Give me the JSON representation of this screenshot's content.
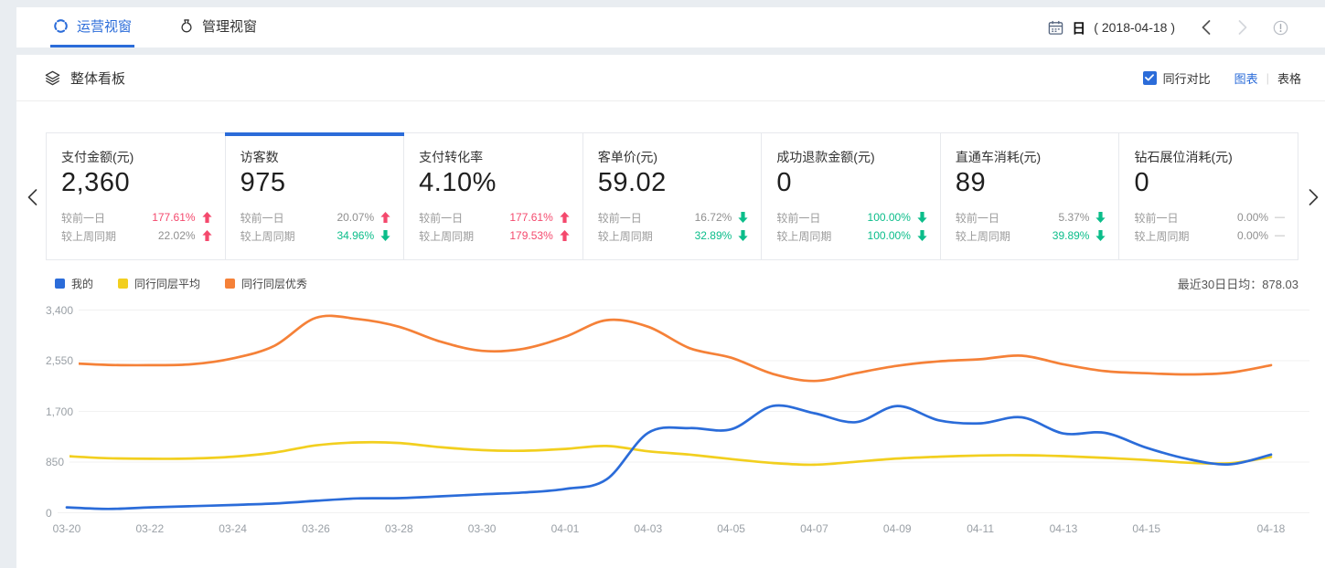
{
  "colors": {
    "accent": "#2b6cd9",
    "up_red": "#f4496d",
    "down_green": "#0bbd8a",
    "gray_text": "#9b9b9b",
    "line_blue": "#2b6cd9",
    "line_yellow": "#f2cf1f",
    "line_orange": "#f58138"
  },
  "header": {
    "tabs": [
      {
        "label": "运营视窗",
        "active": true
      },
      {
        "label": "管理视窗",
        "active": false
      }
    ],
    "date": {
      "unit": "日",
      "range": "( 2018-04-18 )"
    }
  },
  "board": {
    "title": "整体看板",
    "peer_compare": "同行对比",
    "chart_label": "图表",
    "table_label": "表格"
  },
  "cards": [
    {
      "title": "支付金额(元)",
      "value": "2,360",
      "selected": false,
      "rows": [
        {
          "label": "较前一日",
          "value": "177.61%",
          "value_color": "red",
          "arrow": "up"
        },
        {
          "label": "较上周同期",
          "value": "22.02%",
          "value_color": "gray",
          "arrow": "up"
        }
      ]
    },
    {
      "title": "访客数",
      "value": "975",
      "selected": true,
      "rows": [
        {
          "label": "较前一日",
          "value": "20.07%",
          "value_color": "gray",
          "arrow": "up"
        },
        {
          "label": "较上周同期",
          "value": "34.96%",
          "value_color": "green",
          "arrow": "down"
        }
      ]
    },
    {
      "title": "支付转化率",
      "value": "4.10%",
      "selected": false,
      "rows": [
        {
          "label": "较前一日",
          "value": "177.61%",
          "value_color": "red",
          "arrow": "up"
        },
        {
          "label": "较上周同期",
          "value": "179.53%",
          "value_color": "red",
          "arrow": "up"
        }
      ]
    },
    {
      "title": "客单价(元)",
      "value": "59.02",
      "selected": false,
      "rows": [
        {
          "label": "较前一日",
          "value": "16.72%",
          "value_color": "gray",
          "arrow": "down"
        },
        {
          "label": "较上周同期",
          "value": "32.89%",
          "value_color": "green",
          "arrow": "down"
        }
      ]
    },
    {
      "title": "成功退款金额(元)",
      "value": "0",
      "selected": false,
      "rows": [
        {
          "label": "较前一日",
          "value": "100.00%",
          "value_color": "green",
          "arrow": "down"
        },
        {
          "label": "较上周同期",
          "value": "100.00%",
          "value_color": "green",
          "arrow": "down"
        }
      ]
    },
    {
      "title": "直通车消耗(元)",
      "value": "89",
      "selected": false,
      "rows": [
        {
          "label": "较前一日",
          "value": "5.37%",
          "value_color": "gray",
          "arrow": "down"
        },
        {
          "label": "较上周同期",
          "value": "39.89%",
          "value_color": "green",
          "arrow": "down"
        }
      ]
    },
    {
      "title": "钻石展位消耗(元)",
      "value": "0",
      "selected": false,
      "rows": [
        {
          "label": "较前一日",
          "value": "0.00%",
          "value_color": "gray",
          "arrow": "dash"
        },
        {
          "label": "较上周同期",
          "value": "0.00%",
          "value_color": "gray",
          "arrow": "dash"
        }
      ]
    }
  ],
  "chart": {
    "avg_label": "最近30日日均：",
    "avg_value": "878.03",
    "chart_data": {
      "type": "line",
      "title": "",
      "xlabel": "",
      "ylabel": "",
      "ylim": [
        0,
        3400
      ],
      "grid": true,
      "legend_position": "top-left",
      "dates": [
        "03-20",
        "03-21",
        "03-22",
        "03-23",
        "03-24",
        "03-25",
        "03-26",
        "03-27",
        "03-28",
        "03-29",
        "03-30",
        "03-31",
        "04-01",
        "04-02",
        "04-03",
        "04-04",
        "04-05",
        "04-06",
        "04-07",
        "04-08",
        "04-09",
        "04-10",
        "04-11",
        "04-12",
        "04-13",
        "04-14",
        "04-15",
        "04-16",
        "04-17",
        "04-18"
      ],
      "x_tick_labels": [
        "03-20",
        "03-22",
        "03-24",
        "03-26",
        "03-28",
        "03-30",
        "04-01",
        "04-03",
        "04-05",
        "04-07",
        "04-09",
        "04-11",
        "04-13",
        "04-15",
        "04-18"
      ],
      "y_ticks": [
        {
          "value": 0,
          "label": "0"
        },
        {
          "value": 850,
          "label": "850"
        },
        {
          "value": 1700,
          "label": "1,700"
        },
        {
          "value": 2550,
          "label": "2,550"
        },
        {
          "value": 3400,
          "label": "3,400"
        }
      ],
      "series": [
        {
          "name": "我的",
          "color_key": "line_blue",
          "values": [
            90,
            65,
            90,
            110,
            130,
            155,
            200,
            240,
            245,
            275,
            310,
            340,
            400,
            560,
            1340,
            1420,
            1400,
            1790,
            1670,
            1520,
            1790,
            1550,
            1500,
            1600,
            1330,
            1340,
            1090,
            900,
            812,
            975
          ]
        },
        {
          "name": "同行同层平均",
          "color_key": "line_yellow",
          "values": [
            950,
            915,
            905,
            910,
            940,
            1010,
            1130,
            1180,
            1170,
            1100,
            1050,
            1040,
            1070,
            1120,
            1030,
            975,
            900,
            835,
            805,
            855,
            910,
            940,
            960,
            965,
            950,
            920,
            885,
            840,
            830,
            935
          ]
        },
        {
          "name": "同行同层优秀",
          "color_key": "line_orange",
          "values": [
            2510,
            2480,
            2475,
            2490,
            2590,
            2800,
            3270,
            3250,
            3120,
            2870,
            2715,
            2750,
            2950,
            3230,
            3120,
            2760,
            2600,
            2330,
            2210,
            2340,
            2465,
            2540,
            2575,
            2635,
            2490,
            2375,
            2340,
            2320,
            2350,
            2475
          ]
        }
      ]
    }
  }
}
